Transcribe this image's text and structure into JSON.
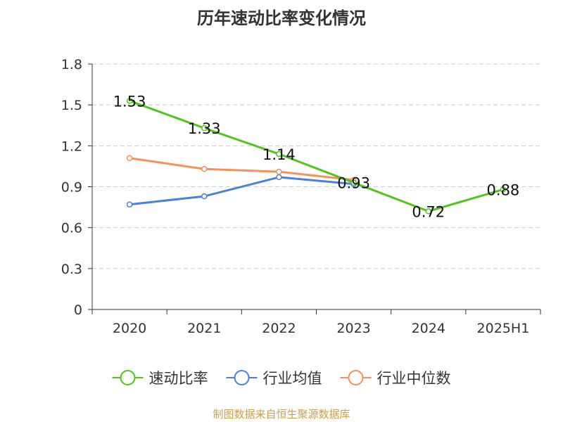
{
  "chart_data": {
    "type": "line",
    "title": "历年速动比率变化情况",
    "categories": [
      "2020",
      "2021",
      "2022",
      "2023",
      "2024",
      "2025H1"
    ],
    "ylim": [
      0,
      1.8
    ],
    "yticks": [
      "0",
      "0.3",
      "0.6",
      "0.9",
      "1.2",
      "1.5",
      "1.8"
    ],
    "grid": true,
    "legend_position": "bottom",
    "series": [
      {
        "name": "速动比率",
        "color": "#52c41a",
        "values": [
          1.53,
          1.33,
          1.14,
          0.93,
          0.72,
          0.88
        ],
        "labels": [
          "1.53",
          "1.33",
          "1.14",
          "0.93",
          "0.72",
          "0.88"
        ]
      },
      {
        "name": "行业均值",
        "color": "#4a7fdc",
        "values": [
          0.77,
          0.83,
          0.97,
          0.92,
          null,
          null
        ]
      },
      {
        "name": "行业中位数",
        "color": "#f4925a",
        "values": [
          1.11,
          1.03,
          1.01,
          0.95,
          null,
          null
        ]
      }
    ]
  },
  "source": "制图数据来自恒生聚源数据库"
}
